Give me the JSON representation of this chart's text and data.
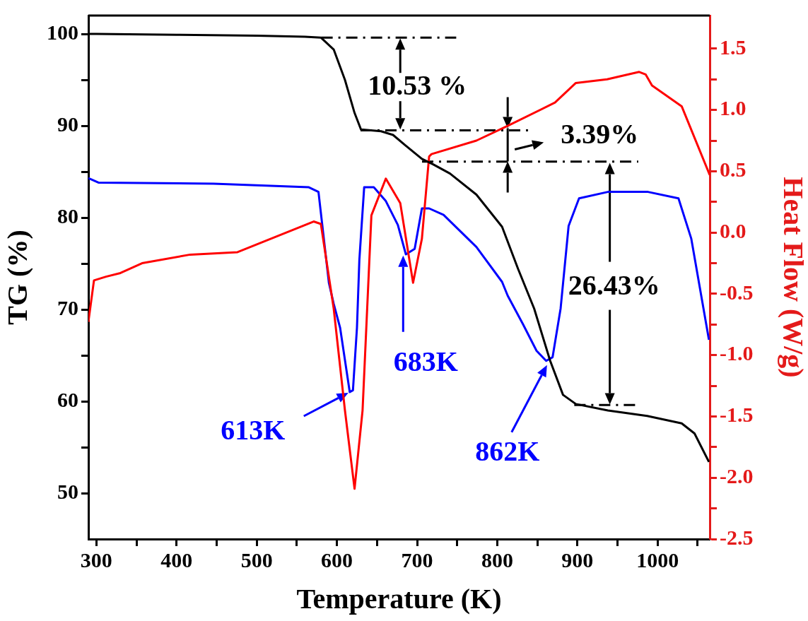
{
  "chart_data": {
    "type": "line",
    "xlabel": "Temperature (K)",
    "ylabel": "TG (%)",
    "y2label": "Heat Flow (W/g)",
    "xlim": [
      290,
      1065
    ],
    "xticks": [
      300,
      {
        "value": 350,
        "label": null
      },
      400,
      {
        "value": 450,
        "label": null
      },
      500,
      {
        "value": 550,
        "label": null
      },
      600,
      {
        "value": 650,
        "label": null
      },
      700,
      {
        "value": 750,
        "label": null
      },
      800,
      {
        "value": 850,
        "label": null
      },
      900,
      {
        "value": 950,
        "label": null
      },
      1000,
      {
        "value": 1050,
        "label": null
      }
    ],
    "ylim": [
      45,
      102
    ],
    "yticks": [
      50,
      {
        "value": 55,
        "label": null
      },
      60,
      {
        "value": 65,
        "label": null
      },
      70,
      {
        "value": 75,
        "label": null
      },
      80,
      {
        "value": 85,
        "label": null
      },
      90,
      {
        "value": 95,
        "label": null
      },
      100
    ],
    "y2lim": [
      -2.5,
      1.77
    ],
    "y2ticks": [
      -2.5,
      {
        "value": -2.25,
        "label": null
      },
      {
        "value": -2,
        "label": "-2.0"
      },
      {
        "value": -1.75,
        "label": null
      },
      -1.5,
      {
        "value": -1.25,
        "label": null
      },
      {
        "value": -1,
        "label": "-1.0"
      },
      {
        "value": -0.75,
        "label": null
      },
      -0.5,
      {
        "value": -0.25,
        "label": null
      },
      {
        "value": 0,
        "label": "0.0"
      },
      {
        "value": 0.25,
        "label": null
      },
      0.5,
      {
        "value": 0.75,
        "label": null
      },
      {
        "value": 1,
        "label": "1.0"
      },
      {
        "value": 1.25,
        "label": null
      },
      1.5
    ],
    "series": [
      {
        "color": "#000000",
        "axis": "y",
        "x": [
          290,
          300,
          400,
          500,
          560,
          580,
          596,
          610,
          622,
          630,
          655,
          670,
          685,
          706,
          720,
          741,
          774,
          806,
          826,
          846,
          866,
          882,
          898,
          938,
          987,
          1030,
          1046,
          1064
        ],
        "values": [
          100,
          100,
          99.9,
          99.8,
          99.7,
          99.6,
          98.3,
          95,
          91.4,
          89.6,
          89.4,
          89,
          87.9,
          86.4,
          85.8,
          84.8,
          82.5,
          79,
          74.4,
          70.1,
          64.4,
          60.7,
          59.7,
          59,
          58.4,
          57.6,
          56.5,
          53.4
        ]
      },
      {
        "color": "#ff0000",
        "axis": "y2",
        "x": [
          290,
          297,
          312,
          330,
          357,
          417,
          476,
          571,
          580,
          596,
          610,
          622,
          632,
          643,
          661,
          679,
          695,
          706,
          715,
          718,
          774,
          813,
          872,
          898,
          937,
          977,
          985,
          993,
          1030,
          1065
        ],
        "values": [
          -0.73,
          -0.39,
          -0.36,
          -0.33,
          -0.25,
          -0.18,
          -0.16,
          0.09,
          0.07,
          -0.62,
          -1.45,
          -2.09,
          -1.45,
          0.14,
          0.44,
          0.24,
          -0.41,
          -0.05,
          0.62,
          0.64,
          0.75,
          0.87,
          1.06,
          1.22,
          1.25,
          1.31,
          1.29,
          1.2,
          1.03,
          0.47
        ]
      },
      {
        "color": "#0000ff",
        "axis": "y",
        "x": [
          290,
          303,
          446,
          565,
          577,
          590,
          596,
          604,
          616,
          620,
          625,
          628,
          634,
          646,
          661,
          676,
          686,
          697,
          706,
          715,
          733,
          774,
          806,
          813,
          832,
          849,
          861,
          869,
          879,
          889,
          902,
          938,
          988,
          1026,
          1042,
          1064
        ],
        "values": [
          84.3,
          83.8,
          83.7,
          83.3,
          82.8,
          72.9,
          70.6,
          68,
          61,
          61.2,
          68,
          75.4,
          83.3,
          83.3,
          81.8,
          79.2,
          76,
          76.6,
          81,
          81,
          80.3,
          76.8,
          73,
          71.5,
          68.4,
          65.5,
          64.4,
          64.8,
          70.1,
          79.1,
          82.1,
          82.8,
          82.8,
          82.1,
          77.7,
          66.7
        ]
      }
    ],
    "ref_lines": [
      {
        "axis": "y",
        "value": 99.6,
        "line_style": "dashed"
      },
      {
        "axis": "y",
        "value": 89.5,
        "line_style": "dashed"
      },
      {
        "axis": "y",
        "value": 86.1,
        "line_style": "dashed"
      },
      {
        "axis": "y",
        "value": 59.6,
        "line_style": "dashed"
      }
    ],
    "annotations": [
      {
        "text": "10.53 %",
        "x": 679,
        "y": 99.6
      },
      {
        "text": "3.39%",
        "x": 813,
        "y": 89.5
      },
      "26.43%",
      {
        "text": "613K",
        "x": 616,
        "y": 61
      },
      "683K",
      {
        "text": "862K",
        "x": 862,
        "y": 64.4
      }
    ]
  }
}
